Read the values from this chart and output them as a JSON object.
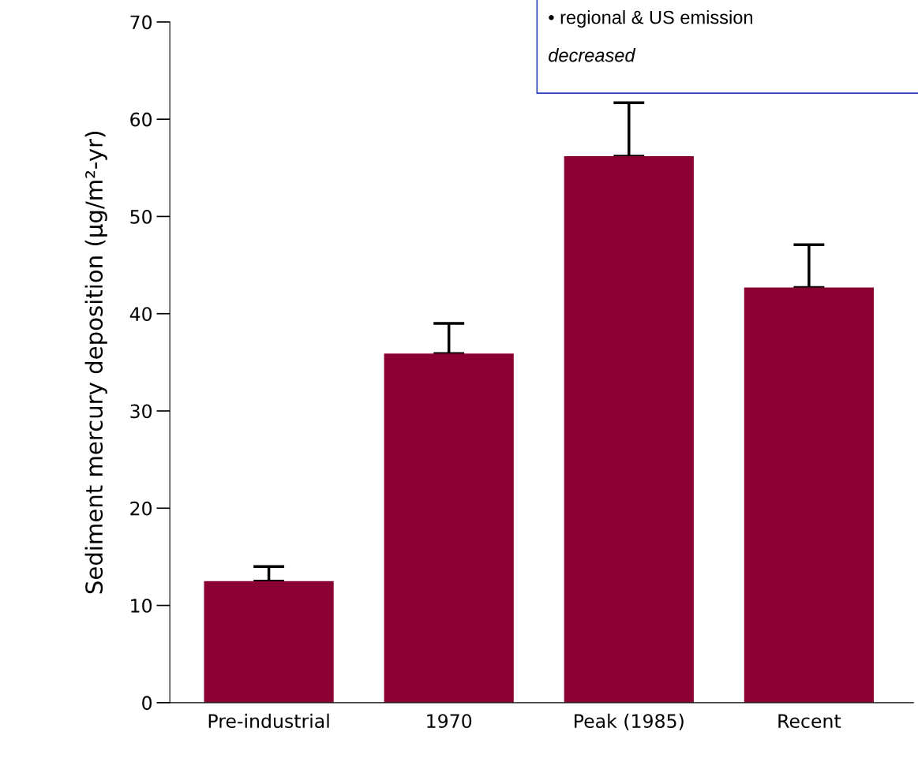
{
  "chart_data": {
    "type": "bar",
    "categories": [
      "Pre-industrial",
      "1970",
      "Peak (1985)",
      "Recent"
    ],
    "values": [
      12.5,
      35.9,
      56.2,
      42.7
    ],
    "errors": [
      [
        12.5,
        14.0
      ],
      [
        35.9,
        39.0
      ],
      [
        56.2,
        61.7
      ],
      [
        42.7,
        47.1
      ]
    ],
    "color": "#8b0033",
    "ylabel": "Sediment mercury deposition (μg/m²-yr)",
    "ylim": [
      0,
      70
    ],
    "yticks": [
      0,
      10,
      20,
      30,
      40,
      50,
      60,
      70
    ],
    "annotations": [
      "• regional & US emission",
      "decreased"
    ],
    "grid": false
  }
}
